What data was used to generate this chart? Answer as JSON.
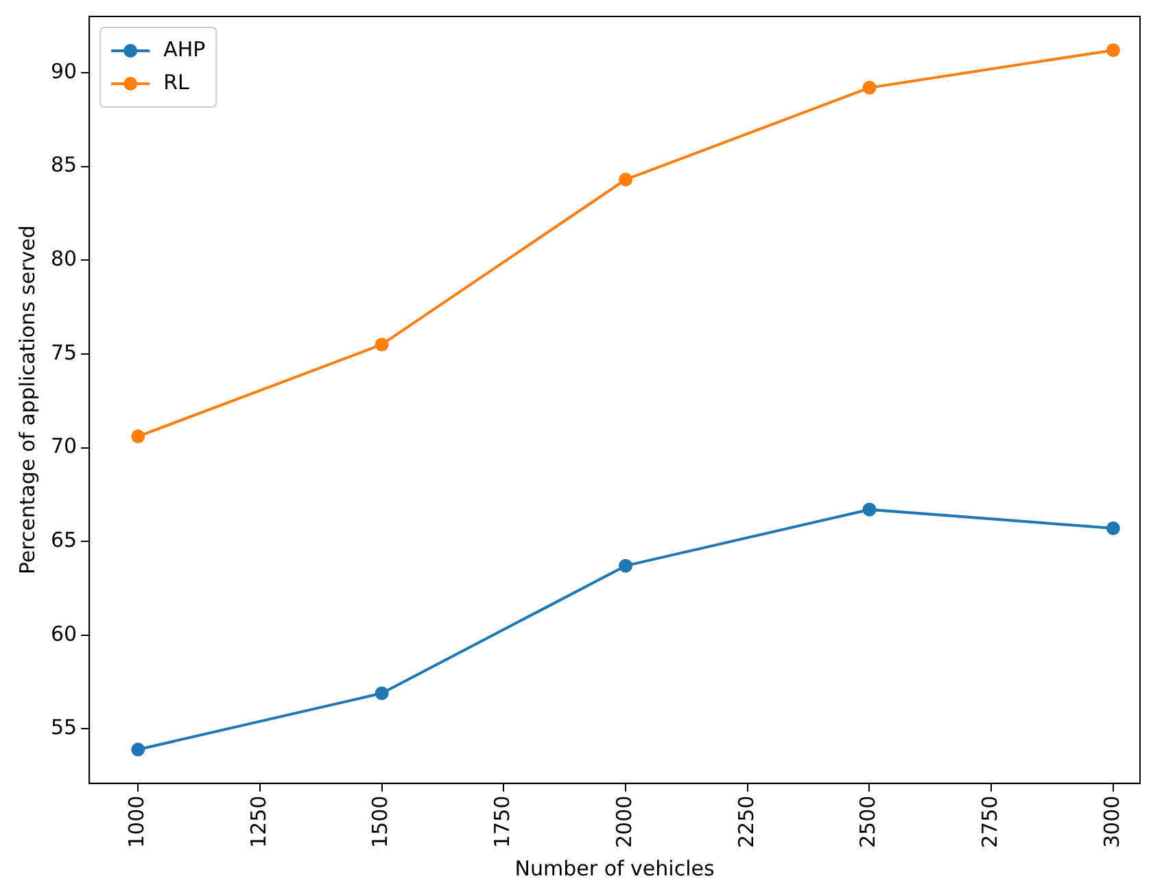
{
  "chart_data": {
    "type": "line",
    "xlabel": "Number of vehicles",
    "ylabel": "Percentage of applications served",
    "x": [
      1000,
      1500,
      2000,
      2500,
      3000
    ],
    "series": [
      {
        "name": "AHP",
        "color": "#1f77b4",
        "values": [
          53.9,
          56.9,
          63.7,
          66.7,
          65.7
        ]
      },
      {
        "name": "RL",
        "color": "#ff7f0e",
        "values": [
          70.6,
          75.5,
          84.3,
          89.2,
          91.2
        ]
      }
    ],
    "xlim": [
      900,
      3055
    ],
    "xticks": [
      1000,
      1250,
      1500,
      1750,
      2000,
      2250,
      2500,
      2750,
      3000
    ],
    "ylim": [
      52.1,
      93
    ],
    "yticks": [
      55,
      60,
      65,
      70,
      75,
      80,
      85,
      90
    ],
    "grid": false,
    "legend": "top left",
    "marker": "circle",
    "line_style": "solid"
  }
}
